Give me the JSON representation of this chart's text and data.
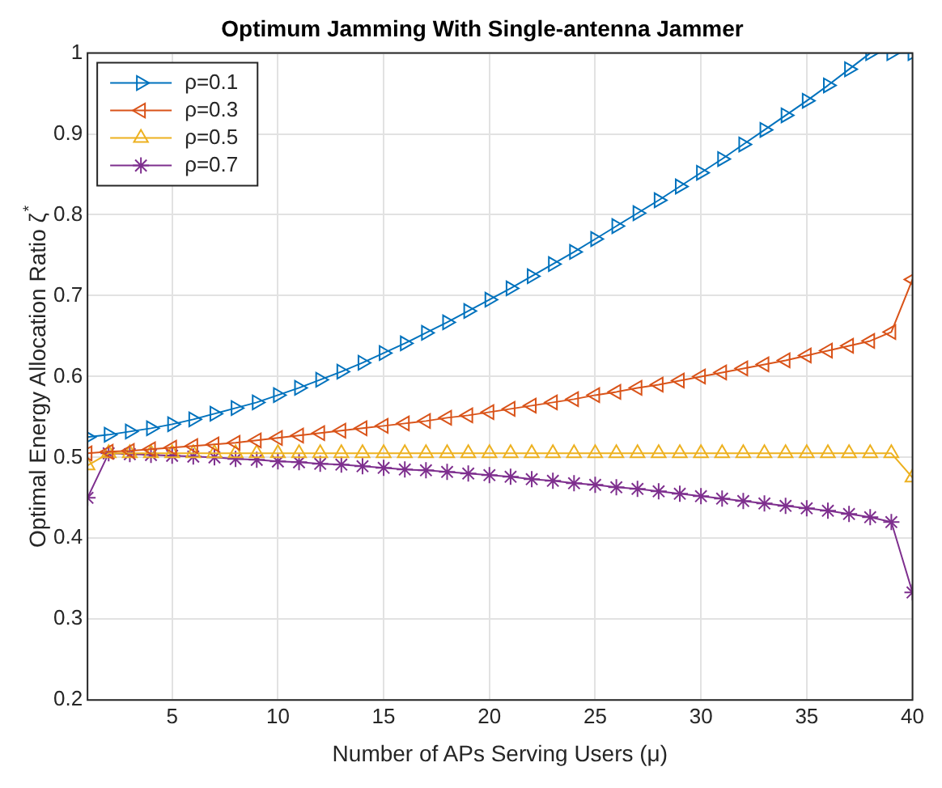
{
  "chart_data": {
    "type": "line",
    "title": "Optimum Jamming With Single-antenna Jammer",
    "xlabel": "Number of APs Serving Users (μ)",
    "ylabel": "Optimal Energy Allocation Ratio ζ$^{*}$",
    "x": [
      1,
      2,
      3,
      4,
      5,
      6,
      7,
      8,
      9,
      10,
      11,
      12,
      13,
      14,
      15,
      16,
      17,
      18,
      19,
      20,
      21,
      22,
      23,
      24,
      25,
      26,
      27,
      28,
      29,
      30,
      31,
      32,
      33,
      34,
      35,
      36,
      37,
      38,
      39,
      40
    ],
    "xlim": [
      1,
      40
    ],
    "xticks": [
      5,
      10,
      15,
      20,
      25,
      30,
      35,
      40
    ],
    "ylim": [
      0.2,
      1
    ],
    "yticks": [
      0.2,
      0.3,
      0.4,
      0.5,
      0.6,
      0.7,
      0.8,
      0.9,
      1
    ],
    "grid": true,
    "legend": "top left",
    "series": [
      {
        "name": "ρ=0.1",
        "color": "#0072bd",
        "marker": "triangle-right",
        "values": [
          0.525,
          0.528,
          0.532,
          0.536,
          0.541,
          0.547,
          0.554,
          0.561,
          0.568,
          0.577,
          0.586,
          0.596,
          0.606,
          0.617,
          0.629,
          0.641,
          0.654,
          0.667,
          0.681,
          0.695,
          0.709,
          0.724,
          0.739,
          0.754,
          0.77,
          0.786,
          0.802,
          0.818,
          0.835,
          0.852,
          0.869,
          0.887,
          0.905,
          0.923,
          0.941,
          0.96,
          0.98,
          1.0,
          1.0,
          1.0
        ]
      },
      {
        "name": "ρ=0.3",
        "color": "#d95319",
        "marker": "triangle-left",
        "values": [
          0.505,
          0.507,
          0.508,
          0.51,
          0.512,
          0.514,
          0.516,
          0.518,
          0.521,
          0.524,
          0.527,
          0.53,
          0.533,
          0.536,
          0.539,
          0.542,
          0.545,
          0.549,
          0.552,
          0.556,
          0.56,
          0.564,
          0.568,
          0.572,
          0.577,
          0.581,
          0.586,
          0.59,
          0.595,
          0.6,
          0.605,
          0.61,
          0.615,
          0.62,
          0.626,
          0.632,
          0.638,
          0.644,
          0.655,
          0.72
        ]
      },
      {
        "name": "ρ=0.5",
        "color": "#edb120",
        "marker": "triangle",
        "values": [
          0.49,
          0.505,
          0.505,
          0.505,
          0.505,
          0.505,
          0.505,
          0.505,
          0.505,
          0.505,
          0.505,
          0.505,
          0.505,
          0.505,
          0.505,
          0.505,
          0.505,
          0.505,
          0.505,
          0.505,
          0.505,
          0.505,
          0.505,
          0.505,
          0.505,
          0.505,
          0.505,
          0.505,
          0.505,
          0.505,
          0.505,
          0.505,
          0.505,
          0.505,
          0.505,
          0.505,
          0.505,
          0.505,
          0.505,
          0.475
        ]
      },
      {
        "name": "ρ=0.7",
        "color": "#7e2f8e",
        "marker": "cross",
        "values": [
          0.45,
          0.505,
          0.504,
          0.503,
          0.502,
          0.501,
          0.5,
          0.498,
          0.497,
          0.495,
          0.494,
          0.492,
          0.491,
          0.489,
          0.487,
          0.485,
          0.484,
          0.482,
          0.48,
          0.478,
          0.476,
          0.473,
          0.471,
          0.468,
          0.466,
          0.463,
          0.461,
          0.458,
          0.455,
          0.452,
          0.449,
          0.446,
          0.443,
          0.44,
          0.437,
          0.434,
          0.43,
          0.426,
          0.42,
          0.333
        ]
      }
    ]
  }
}
